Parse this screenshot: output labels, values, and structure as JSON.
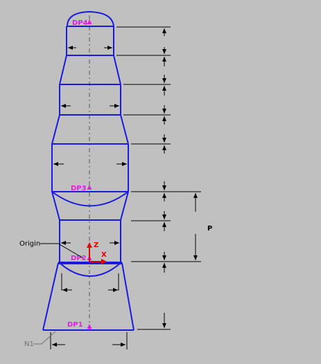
{
  "labels": {
    "dp1": "DP1",
    "dp2": "DP2",
    "dp3": "DP3",
    "dp4": "DP4",
    "origin": "Origin",
    "n1": "N1",
    "p": "P",
    "axis_x": "X",
    "axis_z": "Z"
  },
  "colors": {
    "background": "#c0c0c0",
    "body_outline": "#1a1adc",
    "datum_point": "#e020e0",
    "axis_arrow": "#e00000",
    "dimension": "#000000",
    "n1_label": "#707070"
  }
}
